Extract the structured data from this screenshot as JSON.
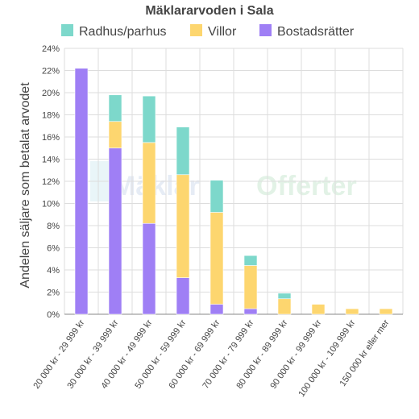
{
  "chart_data": {
    "type": "bar",
    "stacked": true,
    "title": "Mäklararvoden i Sala",
    "ylabel": "Andelen säljare som betalat arvodet",
    "xlabel": "",
    "ylim": [
      0,
      24
    ],
    "yticks": [
      0,
      2,
      4,
      6,
      8,
      10,
      12,
      14,
      16,
      18,
      20,
      22,
      24
    ],
    "ytick_suffix": "%",
    "grid": true,
    "legend_position": "top",
    "categories": [
      "20 000 kr - 29 999 kr",
      "30 000 kr - 39 999 kr",
      "40 000 kr - 49 999 kr",
      "50 000 kr - 59 999 kr",
      "60 000 kr - 69 999 kr",
      "70 000 kr - 79 999 kr",
      "80 000 kr - 89 999 kr",
      "90 000 kr - 99 999 kr",
      "100 000 kr - 109 999 kr",
      "150 000 kr eller mer"
    ],
    "series": [
      {
        "name": "Bostadsrätter",
        "color": "#9f7ff5",
        "values": [
          22.2,
          15.0,
          8.2,
          3.3,
          0.9,
          0.5,
          0,
          0,
          0,
          0
        ]
      },
      {
        "name": "Villor",
        "color": "#fdd66f",
        "values": [
          0,
          2.4,
          7.3,
          9.3,
          8.3,
          3.9,
          1.4,
          0.9,
          0.5,
          0.5
        ]
      },
      {
        "name": "Radhus/parhus",
        "color": "#7dd8cb",
        "values": [
          0,
          2.4,
          4.2,
          4.3,
          2.9,
          0.9,
          0.5,
          0,
          0,
          0
        ]
      }
    ],
    "legend_order": [
      "Radhus/parhus",
      "Villor",
      "Bostadsrätter"
    ]
  },
  "watermark": {
    "part1": "Mäklar",
    "part2": "Offerter"
  }
}
